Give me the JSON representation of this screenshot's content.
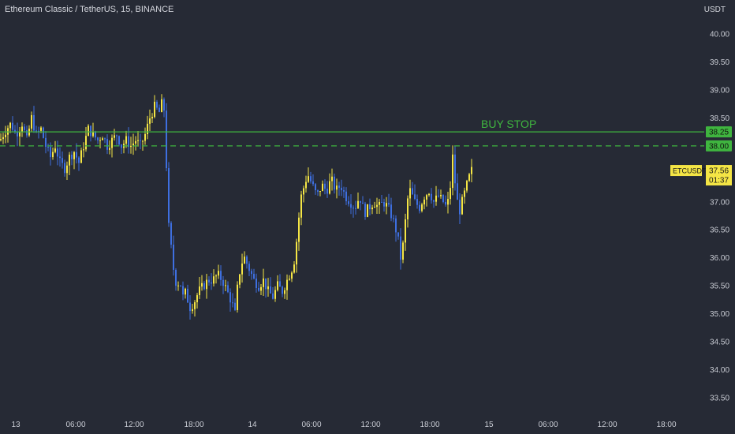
{
  "chart_title": "Ethereum Classic / TetherUS, 15, BINANCE",
  "price_unit": "USDT",
  "colors": {
    "background": "#262a35",
    "up": "#f4e545",
    "down": "#3e6fe0",
    "buy_stop_line": "#3fb53f",
    "axis_text": "#c9ccd4",
    "current_price_badge": "#f4e545"
  },
  "chart_data": {
    "type": "candlestick",
    "symbol": "ETCUSDT",
    "ylim": [
      33.25,
      40.4
    ],
    "y_ticks": [
      "40.00",
      "39.50",
      "39.00",
      "38.50",
      "38.00",
      "37.50",
      "37.00",
      "36.50",
      "36.00",
      "35.50",
      "35.00",
      "34.50",
      "34.00",
      "33.50"
    ],
    "x_ticks": [
      "13",
      "06:00",
      "12:00",
      "18:00",
      "14",
      "06:00",
      "12:00",
      "18:00",
      "15",
      "06:00",
      "12:00",
      "18:00"
    ],
    "levels": [
      {
        "label": "BUY STOP",
        "price": 38.25,
        "price_label": "38.25",
        "style": "solid"
      },
      {
        "price": 38.0,
        "price_label": "38.00",
        "style": "dashed"
      }
    ],
    "current_price": {
      "symbol": "ETCUSDT",
      "value": "37.56",
      "countdown": "01:37",
      "price": 37.56
    },
    "path_points": [
      [
        0,
        38.1
      ],
      [
        8,
        38.3
      ],
      [
        14,
        38.4
      ],
      [
        20,
        38.2
      ],
      [
        28,
        38.4
      ],
      [
        34,
        38.1
      ],
      [
        40,
        38.5
      ],
      [
        46,
        38.2
      ],
      [
        52,
        38.3
      ],
      [
        58,
        38.0
      ],
      [
        64,
        37.8
      ],
      [
        70,
        38.0
      ],
      [
        76,
        37.7
      ],
      [
        82,
        37.6
      ],
      [
        88,
        37.8
      ],
      [
        94,
        37.9
      ],
      [
        100,
        37.7
      ],
      [
        106,
        38.0
      ],
      [
        112,
        38.3
      ],
      [
        118,
        38.2
      ],
      [
        124,
        38.1
      ],
      [
        130,
        38.2
      ],
      [
        136,
        38.0
      ],
      [
        142,
        38.1
      ],
      [
        148,
        38.2
      ],
      [
        154,
        38.0
      ],
      [
        160,
        38.1
      ],
      [
        166,
        38.0
      ],
      [
        172,
        38.1
      ],
      [
        178,
        38.0
      ],
      [
        184,
        38.2
      ],
      [
        190,
        38.5
      ],
      [
        196,
        38.7
      ],
      [
        202,
        38.6
      ],
      [
        206,
        38.8
      ],
      [
        210,
        38.5
      ],
      [
        212,
        36.8
      ],
      [
        216,
        36.3
      ],
      [
        220,
        35.8
      ],
      [
        224,
        35.5
      ],
      [
        228,
        35.6
      ],
      [
        232,
        35.3
      ],
      [
        236,
        35.4
      ],
      [
        240,
        35.1
      ],
      [
        246,
        35.2
      ],
      [
        252,
        35.4
      ],
      [
        258,
        35.5
      ],
      [
        264,
        35.6
      ],
      [
        270,
        35.6
      ],
      [
        276,
        35.7
      ],
      [
        282,
        35.6
      ],
      [
        288,
        35.4
      ],
      [
        294,
        35.2
      ],
      [
        298,
        35.0
      ],
      [
        302,
        35.6
      ],
      [
        306,
        35.9
      ],
      [
        310,
        36.0
      ],
      [
        316,
        35.8
      ],
      [
        322,
        35.6
      ],
      [
        328,
        35.5
      ],
      [
        334,
        35.6
      ],
      [
        340,
        35.4
      ],
      [
        346,
        35.3
      ],
      [
        352,
        35.5
      ],
      [
        358,
        35.4
      ],
      [
        364,
        35.6
      ],
      [
        370,
        35.8
      ],
      [
        374,
        36.0
      ],
      [
        378,
        36.6
      ],
      [
        382,
        37.1
      ],
      [
        386,
        37.3
      ],
      [
        390,
        37.5
      ],
      [
        396,
        37.3
      ],
      [
        402,
        37.1
      ],
      [
        408,
        37.3
      ],
      [
        414,
        37.2
      ],
      [
        420,
        37.4
      ],
      [
        426,
        37.2
      ],
      [
        432,
        37.3
      ],
      [
        438,
        37.1
      ],
      [
        444,
        37.0
      ],
      [
        450,
        36.9
      ],
      [
        456,
        37.1
      ],
      [
        462,
        36.8
      ],
      [
        468,
        36.9
      ],
      [
        474,
        37.0
      ],
      [
        480,
        36.9
      ],
      [
        486,
        37.0
      ],
      [
        492,
        36.9
      ],
      [
        498,
        36.7
      ],
      [
        504,
        36.4
      ],
      [
        508,
        36.0
      ],
      [
        512,
        36.3
      ],
      [
        516,
        37.0
      ],
      [
        520,
        37.2
      ],
      [
        526,
        37.0
      ],
      [
        532,
        36.9
      ],
      [
        538,
        37.1
      ],
      [
        544,
        37.2
      ],
      [
        550,
        37.0
      ],
      [
        556,
        37.1
      ],
      [
        562,
        37.0
      ],
      [
        566,
        36.9
      ],
      [
        570,
        37.1
      ],
      [
        574,
        37.8
      ],
      [
        578,
        37.2
      ],
      [
        582,
        36.8
      ],
      [
        586,
        37.0
      ],
      [
        590,
        37.2
      ],
      [
        594,
        37.4
      ],
      [
        598,
        37.56
      ]
    ]
  }
}
